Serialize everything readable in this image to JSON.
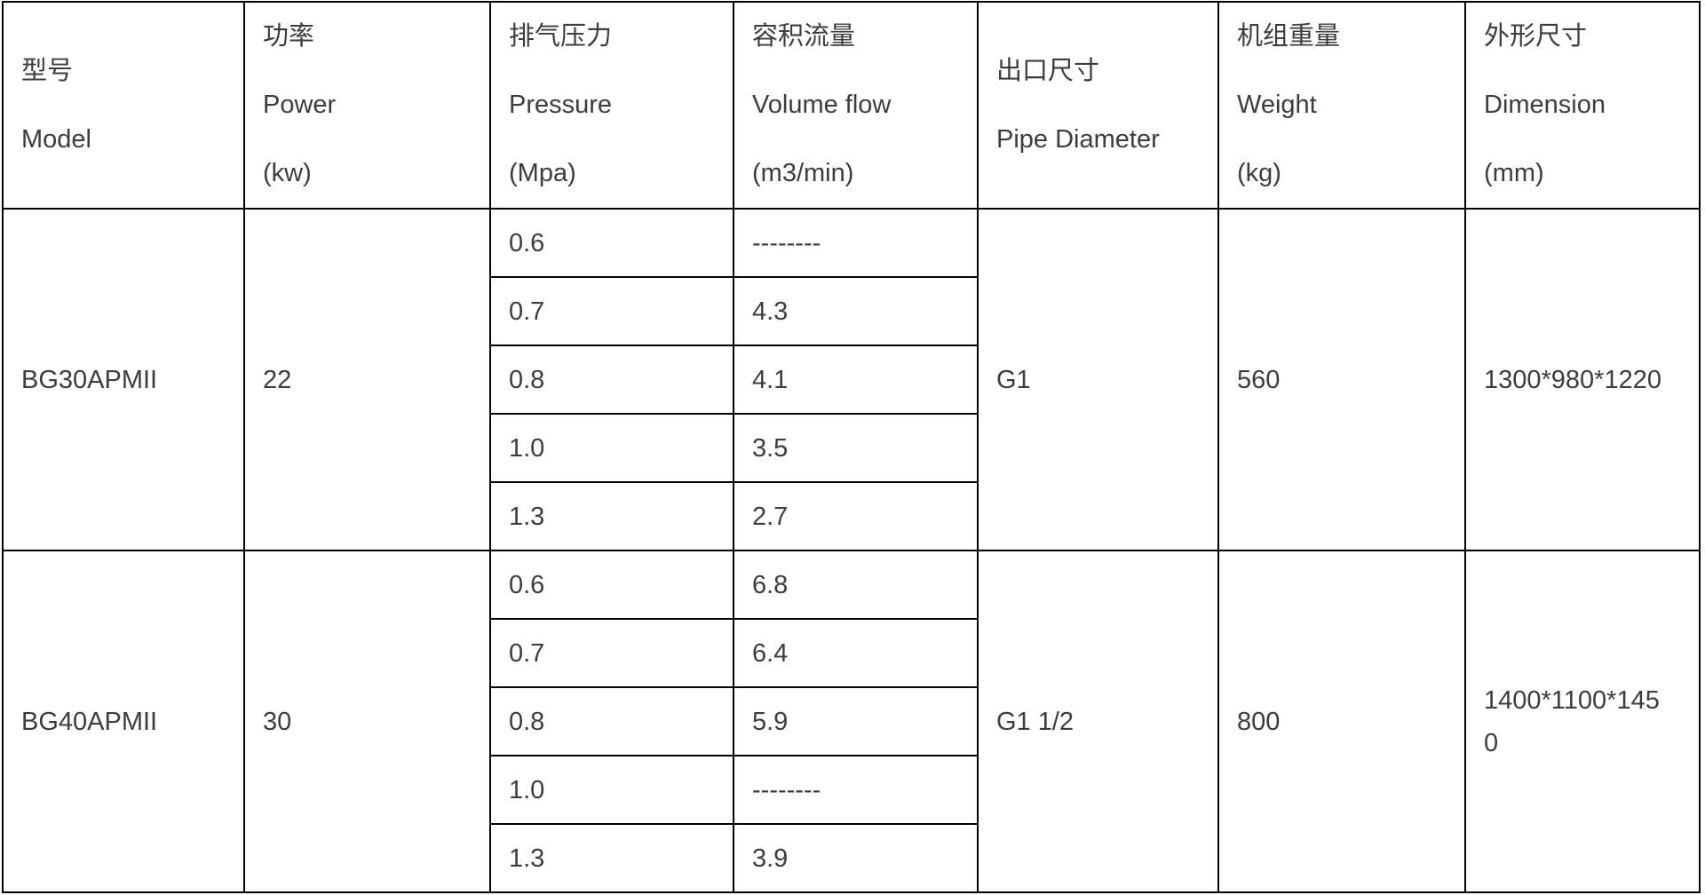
{
  "table": {
    "columns": [
      {
        "key": "model",
        "lines": [
          "型号",
          "Model"
        ]
      },
      {
        "key": "power",
        "lines": [
          "功率",
          "Power",
          "(kw)"
        ]
      },
      {
        "key": "pressure",
        "lines": [
          "排气压力",
          "Pressure",
          "(Mpa)"
        ]
      },
      {
        "key": "volume_flow",
        "lines": [
          "容积流量",
          "Volume flow",
          "(m3/min)"
        ]
      },
      {
        "key": "pipe",
        "lines": [
          "出口尺寸",
          "Pipe Diameter"
        ]
      },
      {
        "key": "weight",
        "lines": [
          "机组重量",
          "Weight",
          "(kg)"
        ]
      },
      {
        "key": "dimension",
        "lines": [
          "外形尺寸",
          "Dimension",
          "(mm)"
        ]
      }
    ],
    "rows": [
      {
        "model": "BG30APMII",
        "power": "22",
        "pipe_diameter": "G1",
        "weight": "560",
        "dimension": "1300*980*1220",
        "pressure_flow": [
          {
            "pressure": "0.6",
            "flow": "--------"
          },
          {
            "pressure": "0.7",
            "flow": "4.3"
          },
          {
            "pressure": "0.8",
            "flow": "4.1"
          },
          {
            "pressure": "1.0",
            "flow": "3.5"
          },
          {
            "pressure": "1.3",
            "flow": "2.7"
          }
        ]
      },
      {
        "model": "BG40APMII",
        "power": "30",
        "pipe_diameter": "G1 1/2",
        "weight": "800",
        "dimension": "1400*1100*1450",
        "pressure_flow": [
          {
            "pressure": "0.6",
            "flow": "6.8"
          },
          {
            "pressure": "0.7",
            "flow": "6.4"
          },
          {
            "pressure": "0.8",
            "flow": "5.9"
          },
          {
            "pressure": "1.0",
            "flow": "--------"
          },
          {
            "pressure": "1.3",
            "flow": "3.9"
          }
        ]
      }
    ]
  },
  "colors": {
    "background": "#ffffff",
    "border": "#000000",
    "text": "#3d3d3d"
  }
}
